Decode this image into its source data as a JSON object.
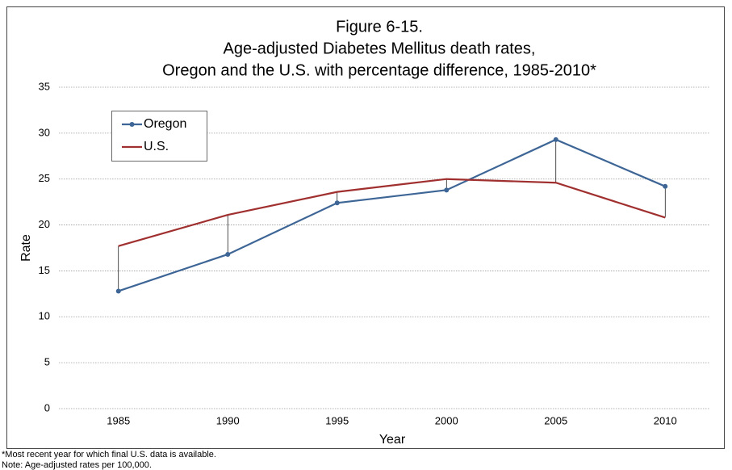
{
  "chart_data": {
    "type": "line",
    "title": [
      "Figure 6-15.",
      "Age-adjusted Diabetes Mellitus death rates,",
      "Oregon and the U.S. with percentage difference, 1985-2010*"
    ],
    "x_label": "Year",
    "y_label": "Rate",
    "categories": [
      "1985",
      "1990",
      "1995",
      "2000",
      "2005",
      "2010"
    ],
    "series": [
      {
        "name": "Oregon",
        "color": "#3d6596",
        "values": [
          12.8,
          16.8,
          22.4,
          23.8,
          29.3,
          24.2
        ],
        "marker": true
      },
      {
        "name": "U.S.",
        "color": "#a0302f",
        "values": [
          17.7,
          21.1,
          23.6,
          25.0,
          24.6,
          20.8
        ],
        "marker": false
      }
    ],
    "ylim": [
      0,
      35
    ],
    "yticks": [
      0,
      5,
      10,
      15,
      20,
      25,
      30,
      35
    ],
    "grid": true,
    "drop_lines": true,
    "legend": "upper left",
    "notes": [
      "*Most recent year for which final U.S. data is available.",
      "Note: Age-adjusted rates per 100,000."
    ]
  }
}
